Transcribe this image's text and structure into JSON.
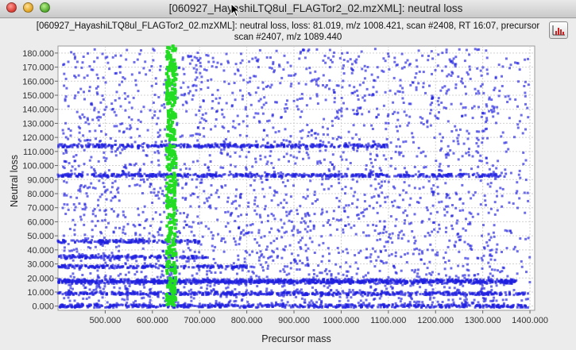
{
  "window": {
    "title": "[060927_HayashiLTQ8ul_FLAGTor2_02.mzXML]: neutral loss"
  },
  "header": {
    "line1": "[060927_HayashiLTQ8ul_FLAGTor2_02.mzXML]: neutral loss, loss: 81.019, m/z 1008.421, scan #2408, RT 16:07, precursor",
    "line2": "scan #2407, m/z 1089.440"
  },
  "toolbar": {
    "icon": "histogram-icon"
  },
  "colors": {
    "points": "#1f1fe0",
    "highlight": "#22dd22",
    "plot_bg": "#ffffff",
    "grid": "#d0d0d0"
  },
  "chart_data": {
    "type": "scatter",
    "xlabel": "Precursor mass",
    "ylabel": "Neutral loss",
    "xlim": [
      400,
      1410
    ],
    "ylim": [
      -3,
      185
    ],
    "x_ticks": [
      500,
      600,
      700,
      800,
      900,
      1000,
      1100,
      1200,
      1300,
      1400
    ],
    "x_tick_labels": [
      "500.000",
      "600.000",
      "700.000",
      "800.000",
      "900.000",
      "1000.000",
      "1100.000",
      "1200.000",
      "1300.000",
      "1400.000"
    ],
    "y_ticks": [
      0,
      10,
      20,
      30,
      40,
      50,
      60,
      70,
      80,
      90,
      100,
      110,
      120,
      130,
      140,
      150,
      160,
      170,
      180
    ],
    "y_tick_labels": [
      "0.000",
      "10.000",
      "20.000",
      "30.000",
      "40.000",
      "50.000",
      "60.000",
      "70.000",
      "80.000",
      "90.000",
      "100.000",
      "110.000",
      "120.000",
      "130.000",
      "140.000",
      "150.000",
      "160.000",
      "170.000",
      "180.000"
    ],
    "grid": true,
    "series": [
      {
        "color": "#1f1fe0",
        "dense_bands": [
          {
            "y": 0,
            "x_range": [
              400,
              1400
            ]
          },
          {
            "y": 9,
            "x_range": [
              400,
              1400
            ]
          },
          {
            "y": 17,
            "x_range": [
              400,
              1370
            ]
          },
          {
            "y": 18,
            "x_range": [
              400,
              1370
            ]
          },
          {
            "y": 28,
            "x_range": [
              400,
              800
            ]
          },
          {
            "y": 35,
            "x_range": [
              400,
              720
            ]
          },
          {
            "y": 46,
            "x_range": [
              400,
              700
            ]
          },
          {
            "y": 93,
            "x_range": [
              400,
              1350
            ]
          },
          {
            "y": 114,
            "x_range": [
              400,
              1100
            ]
          }
        ],
        "selected_point": {
          "x": 1008.421,
          "y": 81.019
        }
      },
      {
        "color": "#22dd22",
        "highlight_band": {
          "x_range": [
            630,
            650
          ],
          "y_range": [
            0,
            185
          ]
        }
      }
    ]
  }
}
